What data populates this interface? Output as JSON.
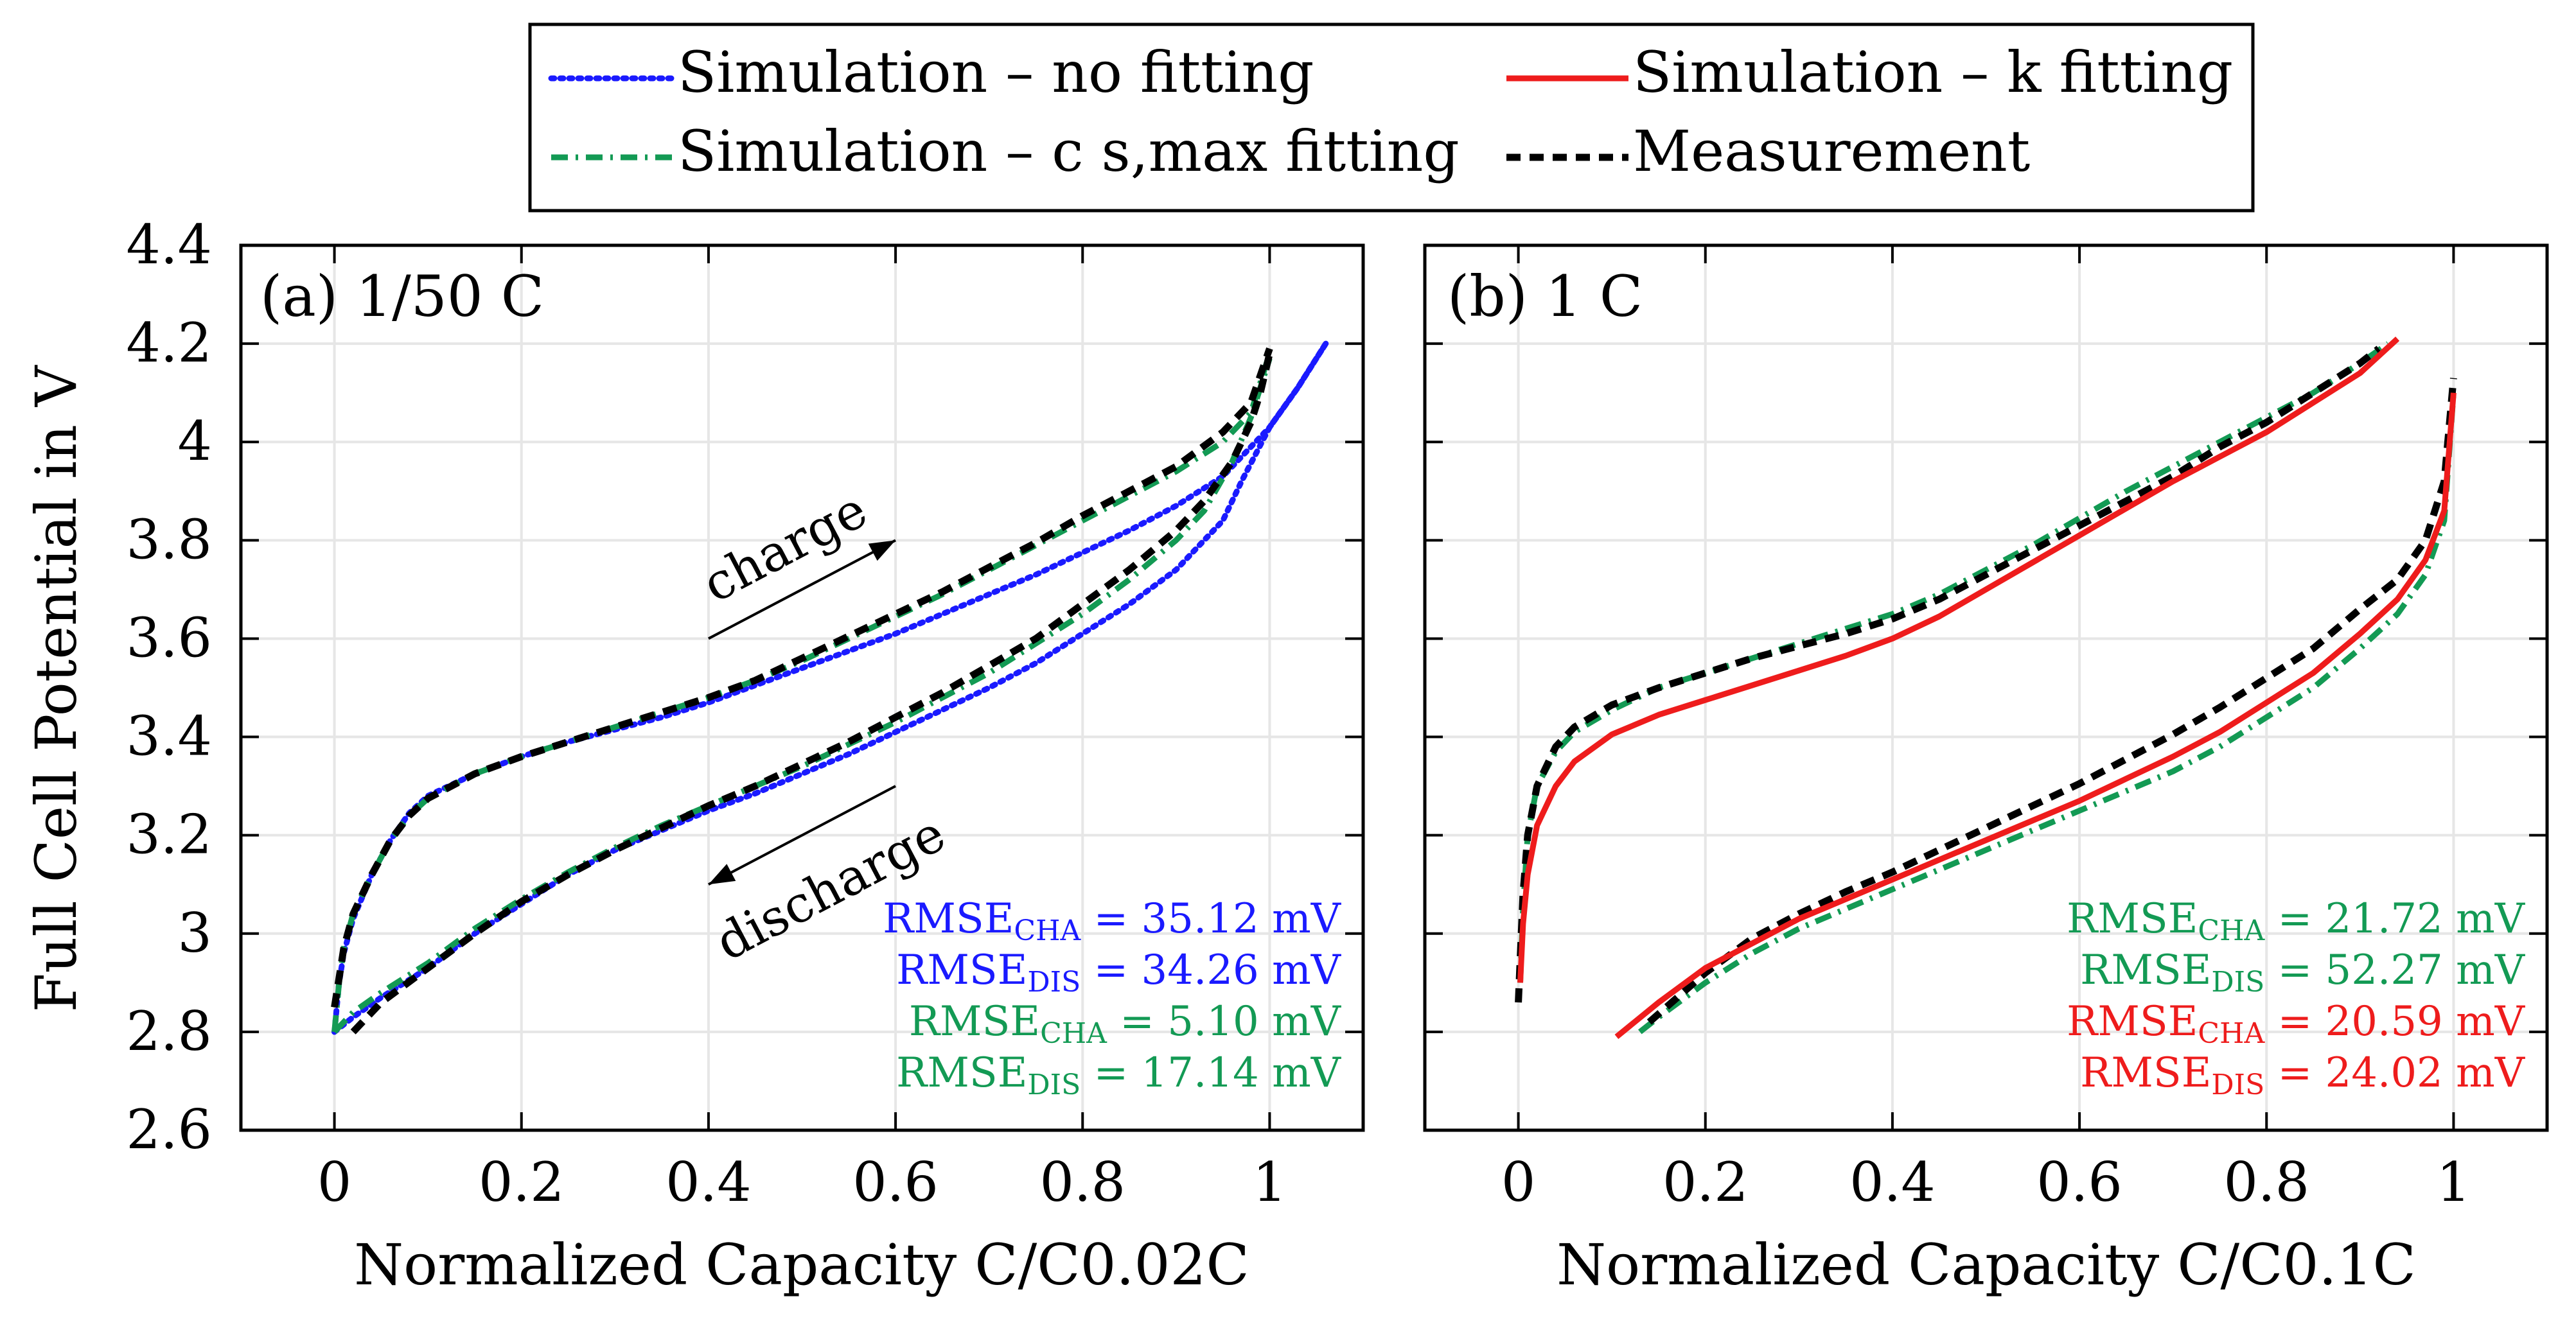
{
  "legend": {
    "entries": [
      {
        "label": "Simulation – no fitting",
        "key": "nofit"
      },
      {
        "label": "Simulation – k fitting",
        "key": "kfit"
      },
      {
        "label": "Simulation – c s,max fitting",
        "key": "csfit"
      },
      {
        "label": "Measurement",
        "key": "meas"
      }
    ]
  },
  "colors": {
    "nofit": "#1a1aff",
    "kfit": "#ee1c1c",
    "csfit": "#139a54",
    "meas": "#000000",
    "grid": "#e6e6e6"
  },
  "chart_data": [
    {
      "type": "line",
      "panel": "a",
      "title": "(a)  1/50 C",
      "ylabel": "Full Cell Potential in V",
      "xlabel": "Normalized Capacity C/C0.02C",
      "xlim": [
        -0.1,
        1.1
      ],
      "ylim": [
        2.6,
        4.4
      ],
      "xticks": [
        0,
        0.2,
        0.4,
        0.6,
        0.8,
        1
      ],
      "xtick_labels": [
        "0",
        "0.2",
        "0.4",
        "0.6",
        "0.8",
        "1"
      ],
      "yticks": [
        2.6,
        2.8,
        3,
        3.2,
        3.4,
        3.6,
        3.8,
        4,
        4.2,
        4.4
      ],
      "ytick_labels": [
        "2.6",
        "2.8",
        "3",
        "3.2",
        "3.4",
        "3.6",
        "3.8",
        "4",
        "4.2",
        "4.4"
      ],
      "grid": true,
      "annotations": [
        {
          "text": "charge",
          "from": [
            0.4,
            3.6
          ],
          "to": [
            0.6,
            3.8
          ]
        },
        {
          "text": "discharge",
          "from": [
            0.6,
            3.3
          ],
          "to": [
            0.4,
            3.1
          ]
        }
      ],
      "rmse": [
        {
          "label": "RMSE",
          "sub": "CHA",
          "value": "= 35.12 mV",
          "series": "nofit"
        },
        {
          "label": "RMSE",
          "sub": "DIS",
          "value": "= 34.26 mV",
          "series": "nofit"
        },
        {
          "label": "RMSE",
          "sub": "CHA",
          "value": "=   5.10 mV",
          "series": "csfit"
        },
        {
          "label": "RMSE",
          "sub": "DIS",
          "value": "= 17.14 mV",
          "series": "csfit"
        }
      ],
      "series": [
        {
          "name": "Simulation – no fitting (charge)",
          "key": "nofit",
          "x": [
            0,
            0.005,
            0.01,
            0.02,
            0.04,
            0.06,
            0.08,
            0.1,
            0.15,
            0.2,
            0.25,
            0.3,
            0.35,
            0.4,
            0.45,
            0.5,
            0.55,
            0.6,
            0.65,
            0.7,
            0.75,
            0.8,
            0.85,
            0.9,
            0.95,
            1.0,
            1.03,
            1.06
          ],
          "y": [
            2.8,
            2.9,
            2.96,
            3.03,
            3.12,
            3.19,
            3.245,
            3.28,
            3.325,
            3.36,
            3.39,
            3.415,
            3.44,
            3.47,
            3.505,
            3.54,
            3.575,
            3.61,
            3.65,
            3.69,
            3.73,
            3.775,
            3.82,
            3.87,
            3.93,
            4.03,
            4.11,
            4.2
          ]
        },
        {
          "name": "Simulation – no fitting (discharge)",
          "key": "nofit",
          "x": [
            0,
            0.02,
            0.05,
            0.1,
            0.15,
            0.2,
            0.25,
            0.3,
            0.35,
            0.4,
            0.45,
            0.5,
            0.55,
            0.6,
            0.65,
            0.7,
            0.75,
            0.8,
            0.85,
            0.9,
            0.95,
            0.97,
            1.0,
            1.03,
            1.06
          ],
          "y": [
            2.8,
            2.83,
            2.87,
            2.93,
            3.0,
            3.06,
            3.12,
            3.17,
            3.21,
            3.25,
            3.285,
            3.325,
            3.365,
            3.41,
            3.455,
            3.5,
            3.55,
            3.61,
            3.67,
            3.74,
            3.84,
            3.92,
            4.03,
            4.11,
            4.2
          ]
        },
        {
          "name": "Simulation – c s,max fitting (charge)",
          "key": "csfit",
          "x": [
            0,
            0.005,
            0.01,
            0.02,
            0.04,
            0.06,
            0.08,
            0.1,
            0.15,
            0.2,
            0.25,
            0.3,
            0.35,
            0.4,
            0.45,
            0.5,
            0.55,
            0.6,
            0.65,
            0.7,
            0.75,
            0.8,
            0.85,
            0.9,
            0.95,
            0.98,
            1.0
          ],
          "y": [
            2.8,
            2.9,
            2.97,
            3.04,
            3.12,
            3.19,
            3.24,
            3.275,
            3.325,
            3.36,
            3.39,
            3.42,
            3.45,
            3.48,
            3.515,
            3.555,
            3.6,
            3.645,
            3.69,
            3.74,
            3.79,
            3.84,
            3.89,
            3.94,
            4.0,
            4.06,
            4.18
          ]
        },
        {
          "name": "Simulation – c s,max fitting (discharge)",
          "key": "csfit",
          "x": [
            0,
            0.02,
            0.05,
            0.1,
            0.15,
            0.2,
            0.25,
            0.3,
            0.35,
            0.4,
            0.45,
            0.5,
            0.55,
            0.6,
            0.65,
            0.7,
            0.75,
            0.8,
            0.85,
            0.9,
            0.93,
            0.96,
            0.98,
            1.0
          ],
          "y": [
            2.8,
            2.84,
            2.88,
            2.94,
            3.01,
            3.07,
            3.125,
            3.175,
            3.22,
            3.26,
            3.3,
            3.34,
            3.385,
            3.43,
            3.48,
            3.53,
            3.59,
            3.65,
            3.72,
            3.8,
            3.86,
            3.96,
            4.05,
            4.17
          ]
        },
        {
          "name": "Measurement (charge)",
          "key": "meas",
          "x": [
            0,
            0.005,
            0.01,
            0.02,
            0.04,
            0.06,
            0.08,
            0.1,
            0.15,
            0.2,
            0.25,
            0.3,
            0.35,
            0.4,
            0.45,
            0.5,
            0.55,
            0.6,
            0.65,
            0.7,
            0.75,
            0.8,
            0.85,
            0.9,
            0.95,
            0.98,
            1.0
          ],
          "y": [
            2.85,
            2.91,
            2.97,
            3.04,
            3.12,
            3.19,
            3.24,
            3.275,
            3.325,
            3.36,
            3.39,
            3.42,
            3.45,
            3.48,
            3.515,
            3.56,
            3.605,
            3.65,
            3.695,
            3.745,
            3.795,
            3.85,
            3.9,
            3.95,
            4.02,
            4.08,
            4.19
          ]
        },
        {
          "name": "Measurement (discharge)",
          "key": "meas",
          "x": [
            0.02,
            0.05,
            0.1,
            0.15,
            0.2,
            0.25,
            0.3,
            0.35,
            0.4,
            0.45,
            0.5,
            0.55,
            0.6,
            0.65,
            0.7,
            0.75,
            0.8,
            0.85,
            0.9,
            0.93,
            0.96,
            0.98,
            0.99,
            1.0
          ],
          "y": [
            2.8,
            2.86,
            2.93,
            3.0,
            3.065,
            3.12,
            3.17,
            3.215,
            3.26,
            3.3,
            3.345,
            3.39,
            3.44,
            3.49,
            3.545,
            3.6,
            3.67,
            3.74,
            3.82,
            3.88,
            3.96,
            4.04,
            4.1,
            4.18
          ]
        }
      ]
    },
    {
      "type": "line",
      "panel": "b",
      "title": "(b)  1 C",
      "xlabel": "Normalized Capacity C/C0.1C",
      "xlim": [
        -0.1,
        1.1
      ],
      "ylim": [
        2.6,
        4.4
      ],
      "xticks": [
        0,
        0.2,
        0.4,
        0.6,
        0.8,
        1
      ],
      "xtick_labels": [
        "0",
        "0.2",
        "0.4",
        "0.6",
        "0.8",
        "1"
      ],
      "yticks": [
        2.6,
        2.8,
        3,
        3.2,
        3.4,
        3.6,
        3.8,
        4,
        4.2,
        4.4
      ],
      "grid": true,
      "rmse": [
        {
          "label": "RMSE",
          "sub": "CHA",
          "value": "= 21.72 mV",
          "series": "csfit"
        },
        {
          "label": "RMSE",
          "sub": "DIS",
          "value": "= 52.27 mV",
          "series": "csfit"
        },
        {
          "label": "RMSE",
          "sub": "CHA",
          "value": "= 20.59 mV",
          "series": "kfit"
        },
        {
          "label": "RMSE",
          "sub": "DIS",
          "value": "= 24.02 mV",
          "series": "kfit"
        }
      ],
      "series": [
        {
          "name": "Simulation – c s,max fitting (charge)",
          "key": "csfit",
          "x": [
            0.002,
            0.005,
            0.01,
            0.02,
            0.04,
            0.06,
            0.1,
            0.15,
            0.2,
            0.25,
            0.3,
            0.35,
            0.4,
            0.45,
            0.5,
            0.55,
            0.6,
            0.65,
            0.7,
            0.75,
            0.8,
            0.85,
            0.9,
            0.93
          ],
          "y": [
            2.9,
            3.05,
            3.2,
            3.3,
            3.37,
            3.41,
            3.455,
            3.5,
            3.53,
            3.56,
            3.59,
            3.62,
            3.65,
            3.69,
            3.74,
            3.79,
            3.845,
            3.9,
            3.95,
            4.0,
            4.05,
            4.1,
            4.16,
            4.2
          ]
        },
        {
          "name": "Simulation – c s,max fitting (discharge)",
          "key": "csfit",
          "x": [
            0.13,
            0.15,
            0.2,
            0.25,
            0.3,
            0.35,
            0.4,
            0.45,
            0.5,
            0.55,
            0.6,
            0.65,
            0.7,
            0.75,
            0.8,
            0.85,
            0.9,
            0.94,
            0.97,
            0.99,
            1.0
          ],
          "y": [
            2.8,
            2.83,
            2.9,
            2.96,
            3.01,
            3.05,
            3.09,
            3.13,
            3.17,
            3.21,
            3.25,
            3.29,
            3.33,
            3.38,
            3.44,
            3.5,
            3.58,
            3.65,
            3.73,
            3.84,
            4.1
          ]
        },
        {
          "name": "Simulation – k fitting (charge)",
          "key": "kfit",
          "x": [
            0.002,
            0.005,
            0.01,
            0.02,
            0.04,
            0.06,
            0.1,
            0.15,
            0.2,
            0.25,
            0.3,
            0.35,
            0.4,
            0.45,
            0.5,
            0.55,
            0.6,
            0.65,
            0.7,
            0.75,
            0.8,
            0.85,
            0.9,
            0.94
          ],
          "y": [
            2.9,
            3.02,
            3.12,
            3.22,
            3.3,
            3.35,
            3.405,
            3.445,
            3.475,
            3.505,
            3.535,
            3.565,
            3.6,
            3.645,
            3.7,
            3.755,
            3.81,
            3.865,
            3.92,
            3.97,
            4.02,
            4.08,
            4.14,
            4.21
          ]
        },
        {
          "name": "Simulation – k fitting (discharge)",
          "key": "kfit",
          "x": [
            0.105,
            0.15,
            0.2,
            0.25,
            0.3,
            0.35,
            0.4,
            0.45,
            0.5,
            0.55,
            0.6,
            0.65,
            0.7,
            0.75,
            0.8,
            0.85,
            0.9,
            0.94,
            0.97,
            0.99,
            1.0
          ],
          "y": [
            2.79,
            2.86,
            2.93,
            2.98,
            3.03,
            3.07,
            3.11,
            3.15,
            3.19,
            3.23,
            3.27,
            3.315,
            3.36,
            3.41,
            3.47,
            3.53,
            3.61,
            3.68,
            3.76,
            3.86,
            4.1
          ]
        },
        {
          "name": "Measurement (charge)",
          "key": "meas",
          "x": [
            0,
            0.002,
            0.005,
            0.01,
            0.02,
            0.04,
            0.06,
            0.1,
            0.15,
            0.2,
            0.25,
            0.3,
            0.35,
            0.4,
            0.45,
            0.5,
            0.55,
            0.6,
            0.65,
            0.7,
            0.75,
            0.8,
            0.85,
            0.9,
            0.92
          ],
          "y": [
            2.86,
            2.95,
            3.08,
            3.2,
            3.3,
            3.38,
            3.42,
            3.465,
            3.5,
            3.53,
            3.56,
            3.585,
            3.61,
            3.64,
            3.68,
            3.73,
            3.78,
            3.83,
            3.88,
            3.93,
            3.99,
            4.04,
            4.1,
            4.16,
            4.19
          ]
        },
        {
          "name": "Measurement (discharge)",
          "key": "meas",
          "x": [
            0.14,
            0.17,
            0.2,
            0.25,
            0.3,
            0.35,
            0.4,
            0.45,
            0.5,
            0.55,
            0.6,
            0.65,
            0.7,
            0.75,
            0.8,
            0.85,
            0.9,
            0.94,
            0.97,
            0.99,
            1.0
          ],
          "y": [
            2.82,
            2.87,
            2.92,
            2.99,
            3.04,
            3.085,
            3.125,
            3.17,
            3.215,
            3.26,
            3.305,
            3.355,
            3.405,
            3.46,
            3.52,
            3.58,
            3.66,
            3.72,
            3.8,
            3.92,
            4.13
          ]
        }
      ]
    }
  ]
}
